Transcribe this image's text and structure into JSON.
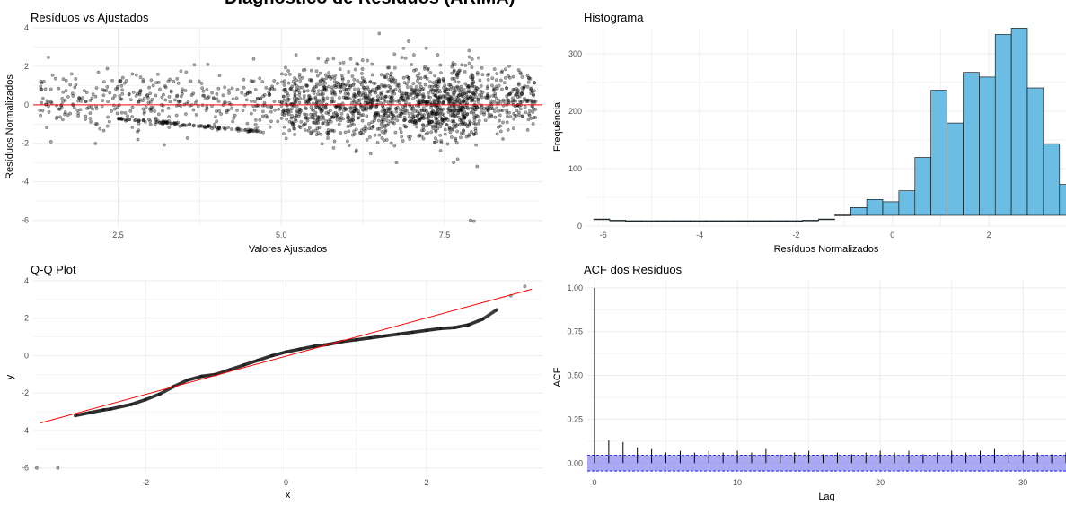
{
  "figure_title": "Diagnóstico de Resíduos (ARIMA)",
  "colors": {
    "grid": "#ebebeb",
    "points": "#000000",
    "ref_line": "#ff0000",
    "hist_fill": "#6cbde3",
    "acf_band": "#8c8cf0",
    "acf_band_edge": "#0000ff"
  },
  "chart_data": [
    {
      "type": "scatter",
      "title": "Resíduos vs Ajustados",
      "xlabel": "Valores Ajustados",
      "ylabel": "Resíduos Normalizados",
      "xlim": [
        1.2,
        9.0
      ],
      "ylim": [
        -6.3,
        4.0
      ],
      "xticks": [
        2.5,
        5.0,
        7.5
      ],
      "xtick_labels": [
        "2.5",
        "5.0",
        "7.5"
      ],
      "yticks": [
        -6,
        -4,
        -2,
        0,
        2,
        4
      ],
      "ytick_labels": [
        "-6",
        "-4",
        "-2",
        "0",
        "2",
        "4"
      ],
      "reference_line": {
        "y": 0
      },
      "n_points": 2200,
      "clusters": [
        {
          "x_range": [
            1.3,
            5.0
          ],
          "y_mean": 0.2,
          "y_sd": 0.8,
          "share": 0.17
        },
        {
          "x_range": [
            5.0,
            7.0
          ],
          "y_mean": 0.0,
          "y_sd": 0.95,
          "share": 0.35
        },
        {
          "x_range": [
            7.0,
            8.0
          ],
          "y_mean": 0.0,
          "y_sd": 0.9,
          "share": 0.25
        },
        {
          "x_range": [
            8.0,
            8.9
          ],
          "y_mean": 0.3,
          "y_sd": 0.8,
          "share": 0.1
        }
      ],
      "lower_bound_line": {
        "x": [
          2.5,
          4.7
        ],
        "y": [
          -0.7,
          -1.4
        ]
      },
      "notable_points": [
        {
          "x": 6.5,
          "y": 3.7
        },
        {
          "x": 7.9,
          "y": -6.0
        },
        {
          "x": 7.95,
          "y": -6.05
        },
        {
          "x": 8.0,
          "y": -3.2
        },
        {
          "x": 6.95,
          "y": 3.3
        }
      ]
    },
    {
      "type": "bar",
      "title": "Histograma",
      "xlabel": "Resíduos Normalizados",
      "ylabel": "Frequência",
      "xlim": [
        -6.35,
        3.6
      ],
      "ylim": [
        0,
        345
      ],
      "xticks": [
        -6,
        -4,
        -2,
        0,
        2
      ],
      "xtick_labels": [
        "-6",
        "-4",
        "-2",
        "0",
        "2"
      ],
      "yticks": [
        0,
        100,
        200,
        300
      ],
      "ytick_labels": [
        "0",
        "100",
        "200",
        "300"
      ],
      "bin_width": 0.3333,
      "bin_start": -6.2,
      "counts": [
        3,
        1,
        0,
        0,
        0,
        0,
        0,
        0,
        0,
        0,
        0,
        0,
        0,
        1,
        3,
        10,
        23,
        37,
        33,
        52,
        110,
        227,
        170,
        258,
        250,
        324,
        335,
        231,
        134,
        63,
        18,
        9,
        3,
        1,
        1,
        1
      ]
    },
    {
      "type": "scatter",
      "title": "Q-Q Plot",
      "xlabel": "x",
      "ylabel": "y",
      "xlim": [
        -3.6,
        3.65
      ],
      "ylim": [
        -6.3,
        4.0
      ],
      "xticks": [
        -2,
        0,
        2
      ],
      "xtick_labels": [
        "-2",
        "0",
        "2"
      ],
      "yticks": [
        -6,
        -4,
        -2,
        0,
        2,
        4
      ],
      "ytick_labels": [
        "-6",
        "-4",
        "-2",
        "0",
        "2",
        "4"
      ],
      "reference_line": {
        "x": [
          -3.5,
          3.5
        ],
        "y": [
          -3.6,
          3.55
        ]
      },
      "sample_quantiles": {
        "x": [
          -3.55,
          -3.25,
          -3.0,
          -2.8,
          -2.6,
          -2.5,
          -2.2,
          -2.0,
          -1.8,
          -1.6,
          -1.4,
          -1.2,
          -1.0,
          -0.8,
          -0.6,
          -0.4,
          -0.2,
          0.0,
          0.2,
          0.4,
          0.6,
          0.8,
          1.0,
          1.2,
          1.4,
          1.6,
          1.8,
          2.0,
          2.2,
          2.4,
          2.6,
          2.8,
          3.0,
          3.2,
          3.4
        ],
        "y": [
          -6.0,
          -6.0,
          -3.2,
          -3.05,
          -2.9,
          -2.85,
          -2.6,
          -2.35,
          -2.05,
          -1.65,
          -1.3,
          -1.1,
          -1.0,
          -0.75,
          -0.5,
          -0.25,
          0.0,
          0.2,
          0.35,
          0.5,
          0.6,
          0.75,
          0.85,
          0.95,
          1.05,
          1.15,
          1.25,
          1.35,
          1.45,
          1.5,
          1.65,
          1.95,
          2.45,
          3.2,
          3.7
        ]
      }
    },
    {
      "type": "bar",
      "title": "ACF dos Resíduos",
      "xlabel": "Lag",
      "ylabel": "ACF",
      "xlim": [
        -0.5,
        33
      ],
      "ylim": [
        -0.06,
        1.04
      ],
      "xticks": [
        0,
        10,
        20,
        30
      ],
      "xtick_labels": [
        "0",
        "10",
        "20",
        "30"
      ],
      "yticks": [
        0,
        0.25,
        0.5,
        0.75,
        1.0
      ],
      "ytick_labels": [
        "0.00",
        "0.25",
        "0.50",
        "0.75",
        "1.00"
      ],
      "confidence_band": [
        -0.045,
        0.045
      ],
      "lags": [
        0,
        1,
        2,
        3,
        4,
        5,
        6,
        7,
        8,
        9,
        10,
        11,
        12,
        13,
        14,
        15,
        16,
        17,
        18,
        19,
        20,
        21,
        22,
        23,
        24,
        25,
        26,
        27,
        28,
        29,
        30,
        31,
        32,
        33
      ],
      "values": [
        1.0,
        0.13,
        0.12,
        0.09,
        0.08,
        0.06,
        0.07,
        0.06,
        0.07,
        0.06,
        0.07,
        0.06,
        0.08,
        0.05,
        0.06,
        0.07,
        0.05,
        0.06,
        0.05,
        0.06,
        0.07,
        0.06,
        0.07,
        0.05,
        0.06,
        0.07,
        0.06,
        0.07,
        0.08,
        0.06,
        0.07,
        0.06,
        0.05,
        0.06
      ]
    }
  ]
}
